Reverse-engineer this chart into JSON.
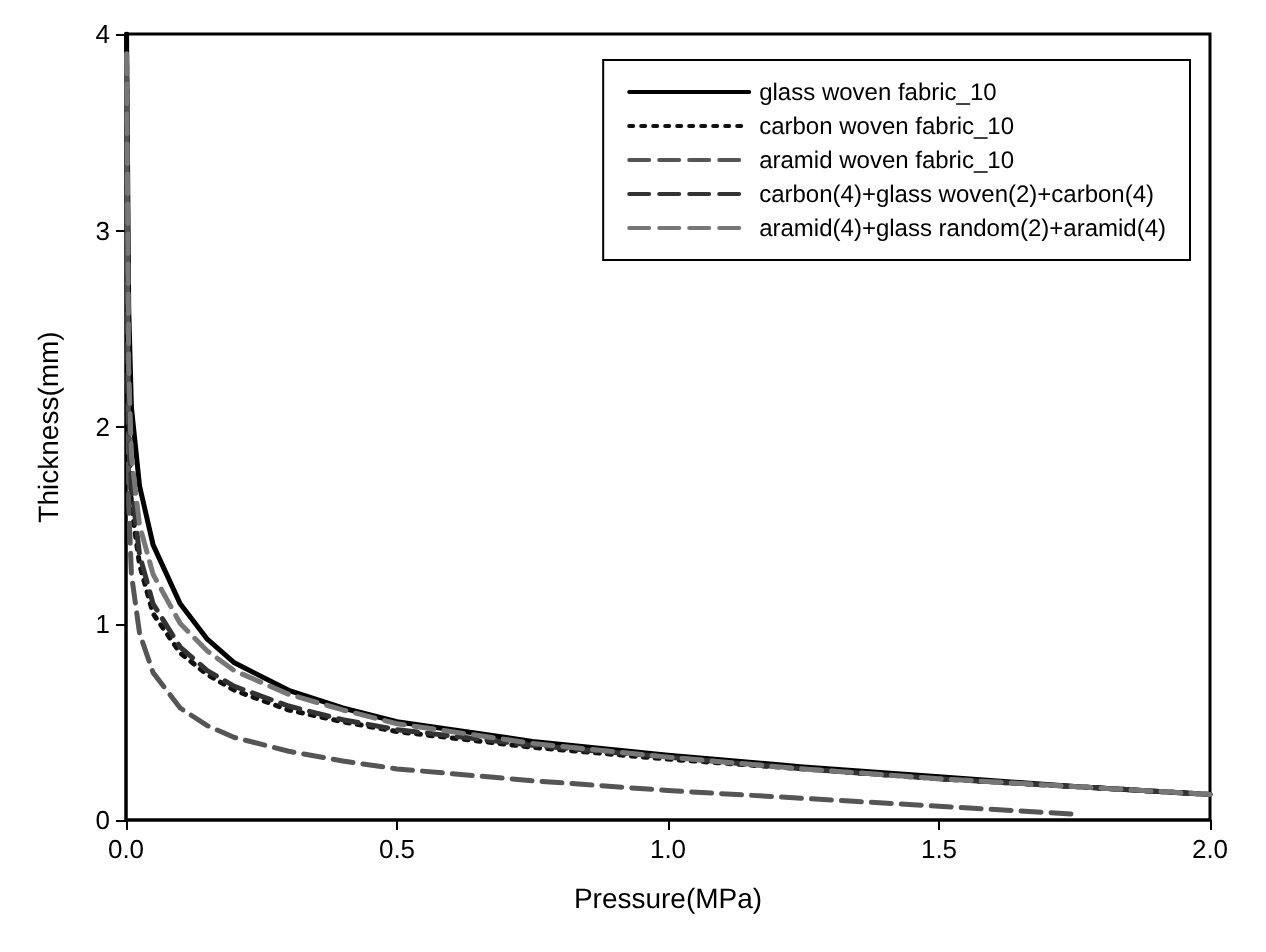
{
  "chart_data": {
    "type": "line",
    "xlabel": "Pressure(MPa)",
    "ylabel": "Thickness(mm)",
    "xlim": [
      0,
      2
    ],
    "ylim": [
      0,
      4
    ],
    "xticks": [
      {
        "value": 0,
        "label": "0.0"
      },
      {
        "value": 0.5,
        "label": "0.5"
      },
      {
        "value": 1,
        "label": "1.0"
      },
      {
        "value": 1.5,
        "label": "1.5"
      },
      {
        "value": 2,
        "label": "2.0"
      }
    ],
    "yticks": [
      0,
      1,
      2,
      3,
      4
    ],
    "grid": false,
    "legend": "top right",
    "marker": "none",
    "x": [
      0.001,
      0.005,
      0.01,
      0.025,
      0.05,
      0.1,
      0.15,
      0.2,
      0.3,
      0.4,
      0.5,
      0.75,
      1.0,
      1.25,
      1.5,
      1.75,
      2.0
    ],
    "series": [
      {
        "name": "glass woven fabric_10",
        "color": "#000000",
        "line_style": "solid",
        "values": [
          4.0,
          2.6,
          2.1,
          1.7,
          1.4,
          1.1,
          0.92,
          0.8,
          0.66,
          0.57,
          0.5,
          0.4,
          0.33,
          0.27,
          0.22,
          0.17,
          0.13
        ]
      },
      {
        "name": "carbon woven fabric_10",
        "color": "#111111",
        "line_style": "dotted",
        "values": [
          3.9,
          2.0,
          1.6,
          1.3,
          1.05,
          0.85,
          0.74,
          0.66,
          0.56,
          0.5,
          0.45,
          0.37,
          0.31,
          0.26,
          0.21,
          0.17,
          0.13
        ]
      },
      {
        "name": "aramid woven fabric_10",
        "color": "#555555",
        "line_style": "dashed",
        "values": [
          3.8,
          1.6,
          1.25,
          0.95,
          0.75,
          0.57,
          0.48,
          0.42,
          0.35,
          0.3,
          0.26,
          0.2,
          0.15,
          0.11,
          0.07,
          0.03,
          null
        ]
      },
      {
        "name": "carbon(4)+glass woven(2)+carbon(4)",
        "color": "#333333",
        "line_style": "dashed",
        "values": [
          3.9,
          2.1,
          1.7,
          1.35,
          1.1,
          0.88,
          0.76,
          0.68,
          0.58,
          0.51,
          0.46,
          0.38,
          0.32,
          0.26,
          0.21,
          0.17,
          0.13
        ]
      },
      {
        "name": "aramid(4)+glass random(2)+aramid(4)",
        "color": "#777777",
        "line_style": "dashed",
        "values": [
          3.9,
          2.3,
          1.85,
          1.5,
          1.25,
          1.0,
          0.86,
          0.76,
          0.64,
          0.56,
          0.49,
          0.39,
          0.32,
          0.26,
          0.21,
          0.17,
          0.13
        ]
      }
    ]
  }
}
